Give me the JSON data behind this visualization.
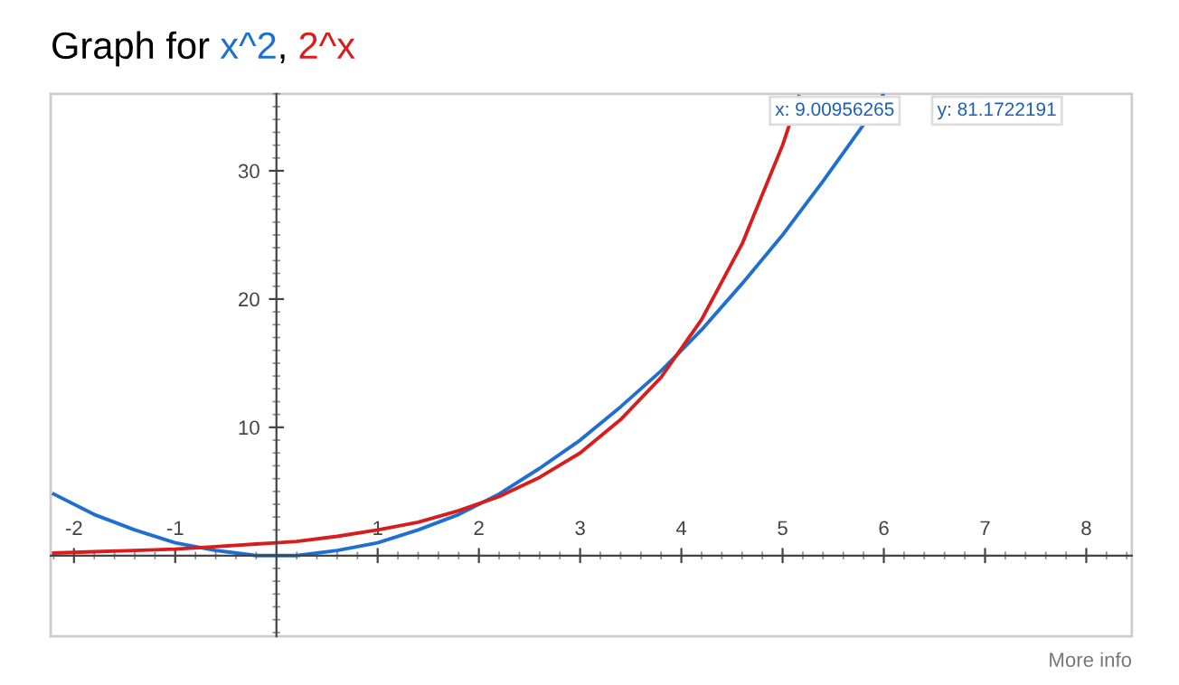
{
  "chart_data": {
    "type": "line",
    "title": "Graph for",
    "series": [
      {
        "name": "x^2",
        "color": "#1f6fd1",
        "x": [
          -2.2,
          -1.8,
          -1.4,
          -1.0,
          -0.6,
          -0.2,
          0,
          0.2,
          0.6,
          1.0,
          1.4,
          1.8,
          2.2,
          2.6,
          3.0,
          3.4,
          3.8,
          4.2,
          4.6,
          5.0,
          5.4,
          5.8,
          5.99
        ],
        "values": [
          4.8,
          3.2,
          2,
          1,
          0.4,
          0,
          0,
          0,
          0.4,
          1,
          2,
          3.2,
          4.8,
          6.8,
          9,
          11.6,
          14.4,
          17.6,
          21.2,
          25,
          29.2,
          33.6,
          35.9
        ]
      },
      {
        "name": "2^x",
        "color": "#d91c1c",
        "x": [
          -2.2,
          -1.8,
          -1.4,
          -1.0,
          -0.6,
          -0.2,
          0,
          0.2,
          0.6,
          1.0,
          1.4,
          1.8,
          2.2,
          2.6,
          3.0,
          3.4,
          3.8,
          4.2,
          4.6,
          5.0,
          5.16
        ],
        "values": [
          0.2,
          0.3,
          0.4,
          0.5,
          0.7,
          0.9,
          1,
          1.1,
          1.5,
          2,
          2.6,
          3.5,
          4.6,
          6.1,
          8,
          10.6,
          13.9,
          18.4,
          24.3,
          32,
          35.8
        ]
      }
    ],
    "xlim": [
      -2.23,
      8.45
    ],
    "ylim": [
      -6.3,
      36
    ],
    "xticks": [
      -2,
      -1,
      1,
      2,
      3,
      4,
      5,
      6,
      7,
      8
    ],
    "yticks": [
      10,
      20,
      30
    ],
    "grid": false,
    "legend": false,
    "marker": "none",
    "line_style": "solid",
    "annotations": [
      "x: 9.00956265",
      "y: 81.1722191",
      "More info",
      ","
    ]
  }
}
